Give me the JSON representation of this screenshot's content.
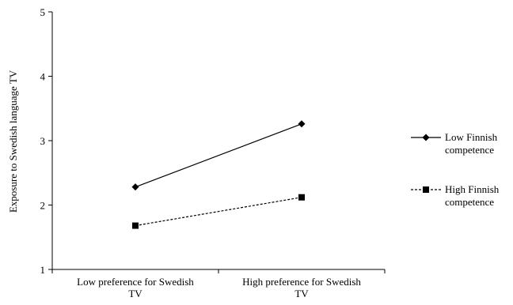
{
  "chart_data": {
    "type": "line",
    "title": "",
    "xlabel": "",
    "ylabel": "Exposure to Swedish language TV",
    "ylim": [
      1,
      5
    ],
    "yticks": [
      "1",
      "2",
      "3",
      "4",
      "5"
    ],
    "categories": [
      [
        "Low preference for Swedish",
        "TV"
      ],
      [
        "High preference for Swedish",
        "TV"
      ]
    ],
    "legend_position": "right",
    "grid": false,
    "series": [
      {
        "name": [
          "Low Finnish",
          "competence"
        ],
        "values": [
          2.28,
          3.26
        ],
        "line_style": "solid",
        "marker": "diamond",
        "color": "#000000"
      },
      {
        "name": [
          "High Finnish",
          "competence"
        ],
        "values": [
          1.68,
          2.12
        ],
        "line_style": "dashed",
        "marker": "square",
        "color": "#000000"
      }
    ]
  }
}
